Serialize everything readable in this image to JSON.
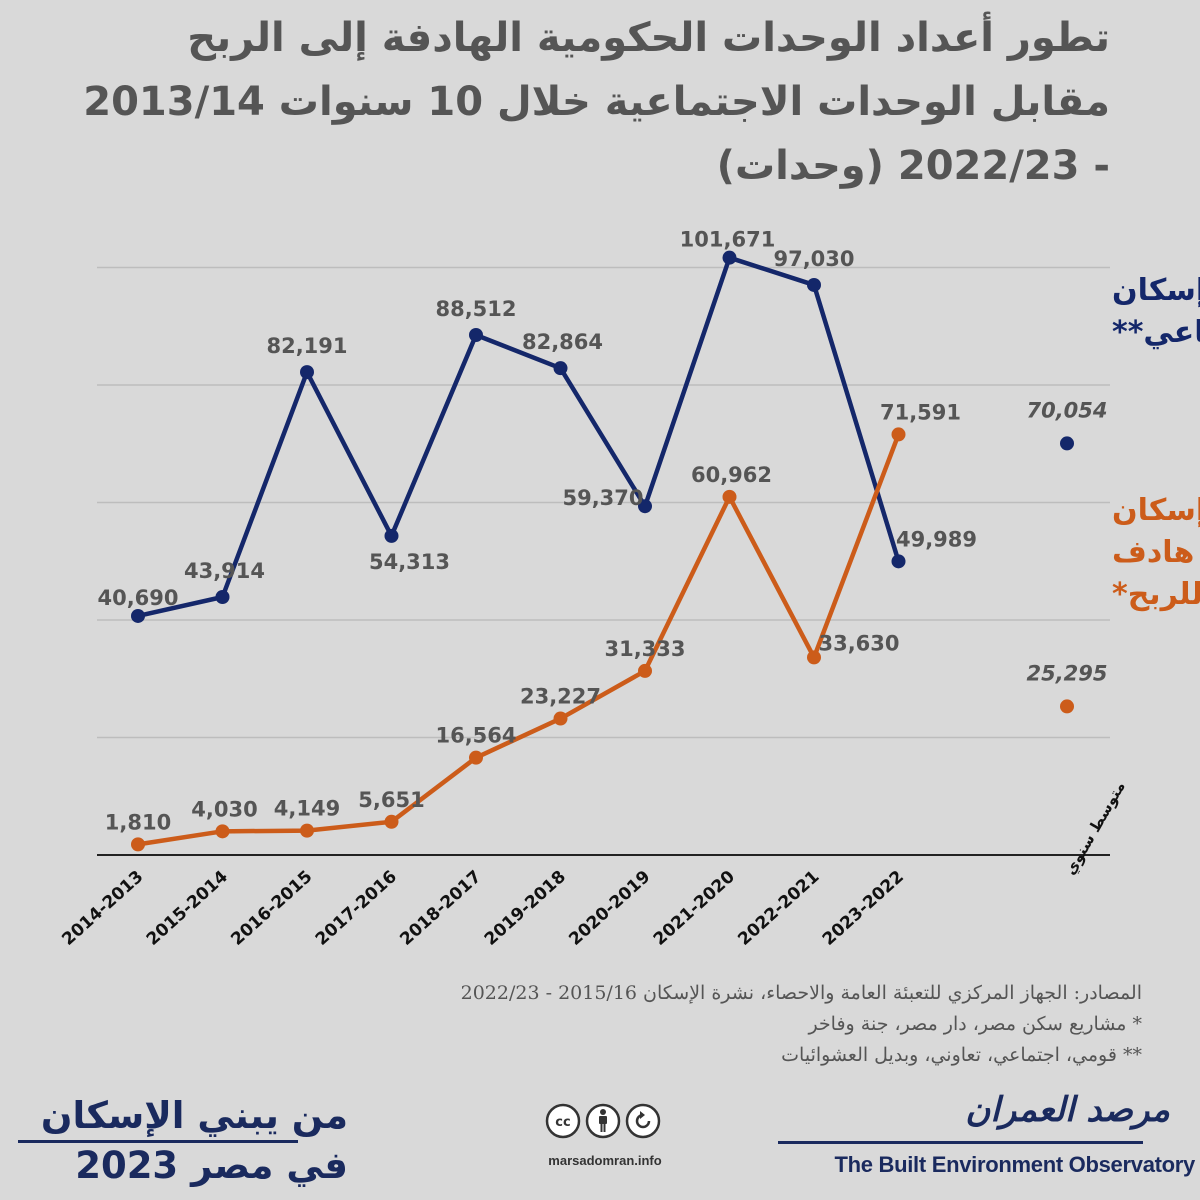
{
  "title": {
    "line1": "تطور أعداد الوحدات الحكومية الهادفة إلى الربح",
    "line2": "مقابل الوحدات الاجتماعية خلال 10 سنوات 2013/14",
    "line3": "- 2022/23  (وحدات)"
  },
  "chart_data": {
    "type": "line",
    "title": "تطور أعداد الوحدات الحكومية الهادفة إلى الربح مقابل الوحدات الاجتماعية خلال 10 سنوات 2013/14 - 2022/23 (وحدات)",
    "categories": [
      "2014-2013",
      "2015-2014",
      "2016-2015",
      "2017-2016",
      "2018-2017",
      "2019-2018",
      "2020-2019",
      "2021-2020",
      "2022-2021",
      "2023-2022"
    ],
    "ylim": [
      0,
      120000
    ],
    "grid": true,
    "series": [
      {
        "name": "إسكان إجتماعي**",
        "name_lines": [
          "إسكان",
          "إجتماعي**"
        ],
        "color": "#14276a",
        "values": [
          40690,
          43914,
          82191,
          54313,
          88512,
          82864,
          59370,
          101671,
          97030,
          49989
        ],
        "labels": [
          "40,690",
          "43,914",
          "82,191",
          "54,313",
          "88,512",
          "82,864",
          "59,370",
          "101,671",
          "97,030",
          "49,989"
        ],
        "average": 70054,
        "average_label": "70,054"
      },
      {
        "name": "إسكان هادف للربح*",
        "name_lines": [
          "إسكان",
          "هادف",
          "للربح*"
        ],
        "color": "#cc5c1a",
        "values": [
          1810,
          4030,
          4149,
          5651,
          16564,
          23227,
          31333,
          60962,
          33630,
          71591
        ],
        "labels": [
          "1,810",
          "4,030",
          "4,149",
          "5,651",
          "16,564",
          "23,227",
          "31,333",
          "60,962",
          "33,630",
          "71,591"
        ],
        "average": 25295,
        "average_label": "25,295"
      }
    ],
    "average_category": "متوسط سنوي"
  },
  "sources": {
    "line1": "المصادر: الجهاز المركزي للتعبئة العامة والاحصاء، نشرة الإسكان 2015/16 - 2022/23",
    "line2": "* مشاريع سكن مصر، دار مصر، جنة وفاخر",
    "line3": "** قومي، اجتماعي، تعاوني، وبديل العشوائيات"
  },
  "footer": {
    "book_line1": "من يبني الإسكان",
    "book_line2": "في مصر 2023",
    "website": "marsadomran.info",
    "org_arabic": "مرصد العمران",
    "org_english": "The Built Environment Observatory",
    "license_icons": [
      "cc-icon",
      "by-person-icon",
      "nd-icon"
    ]
  }
}
